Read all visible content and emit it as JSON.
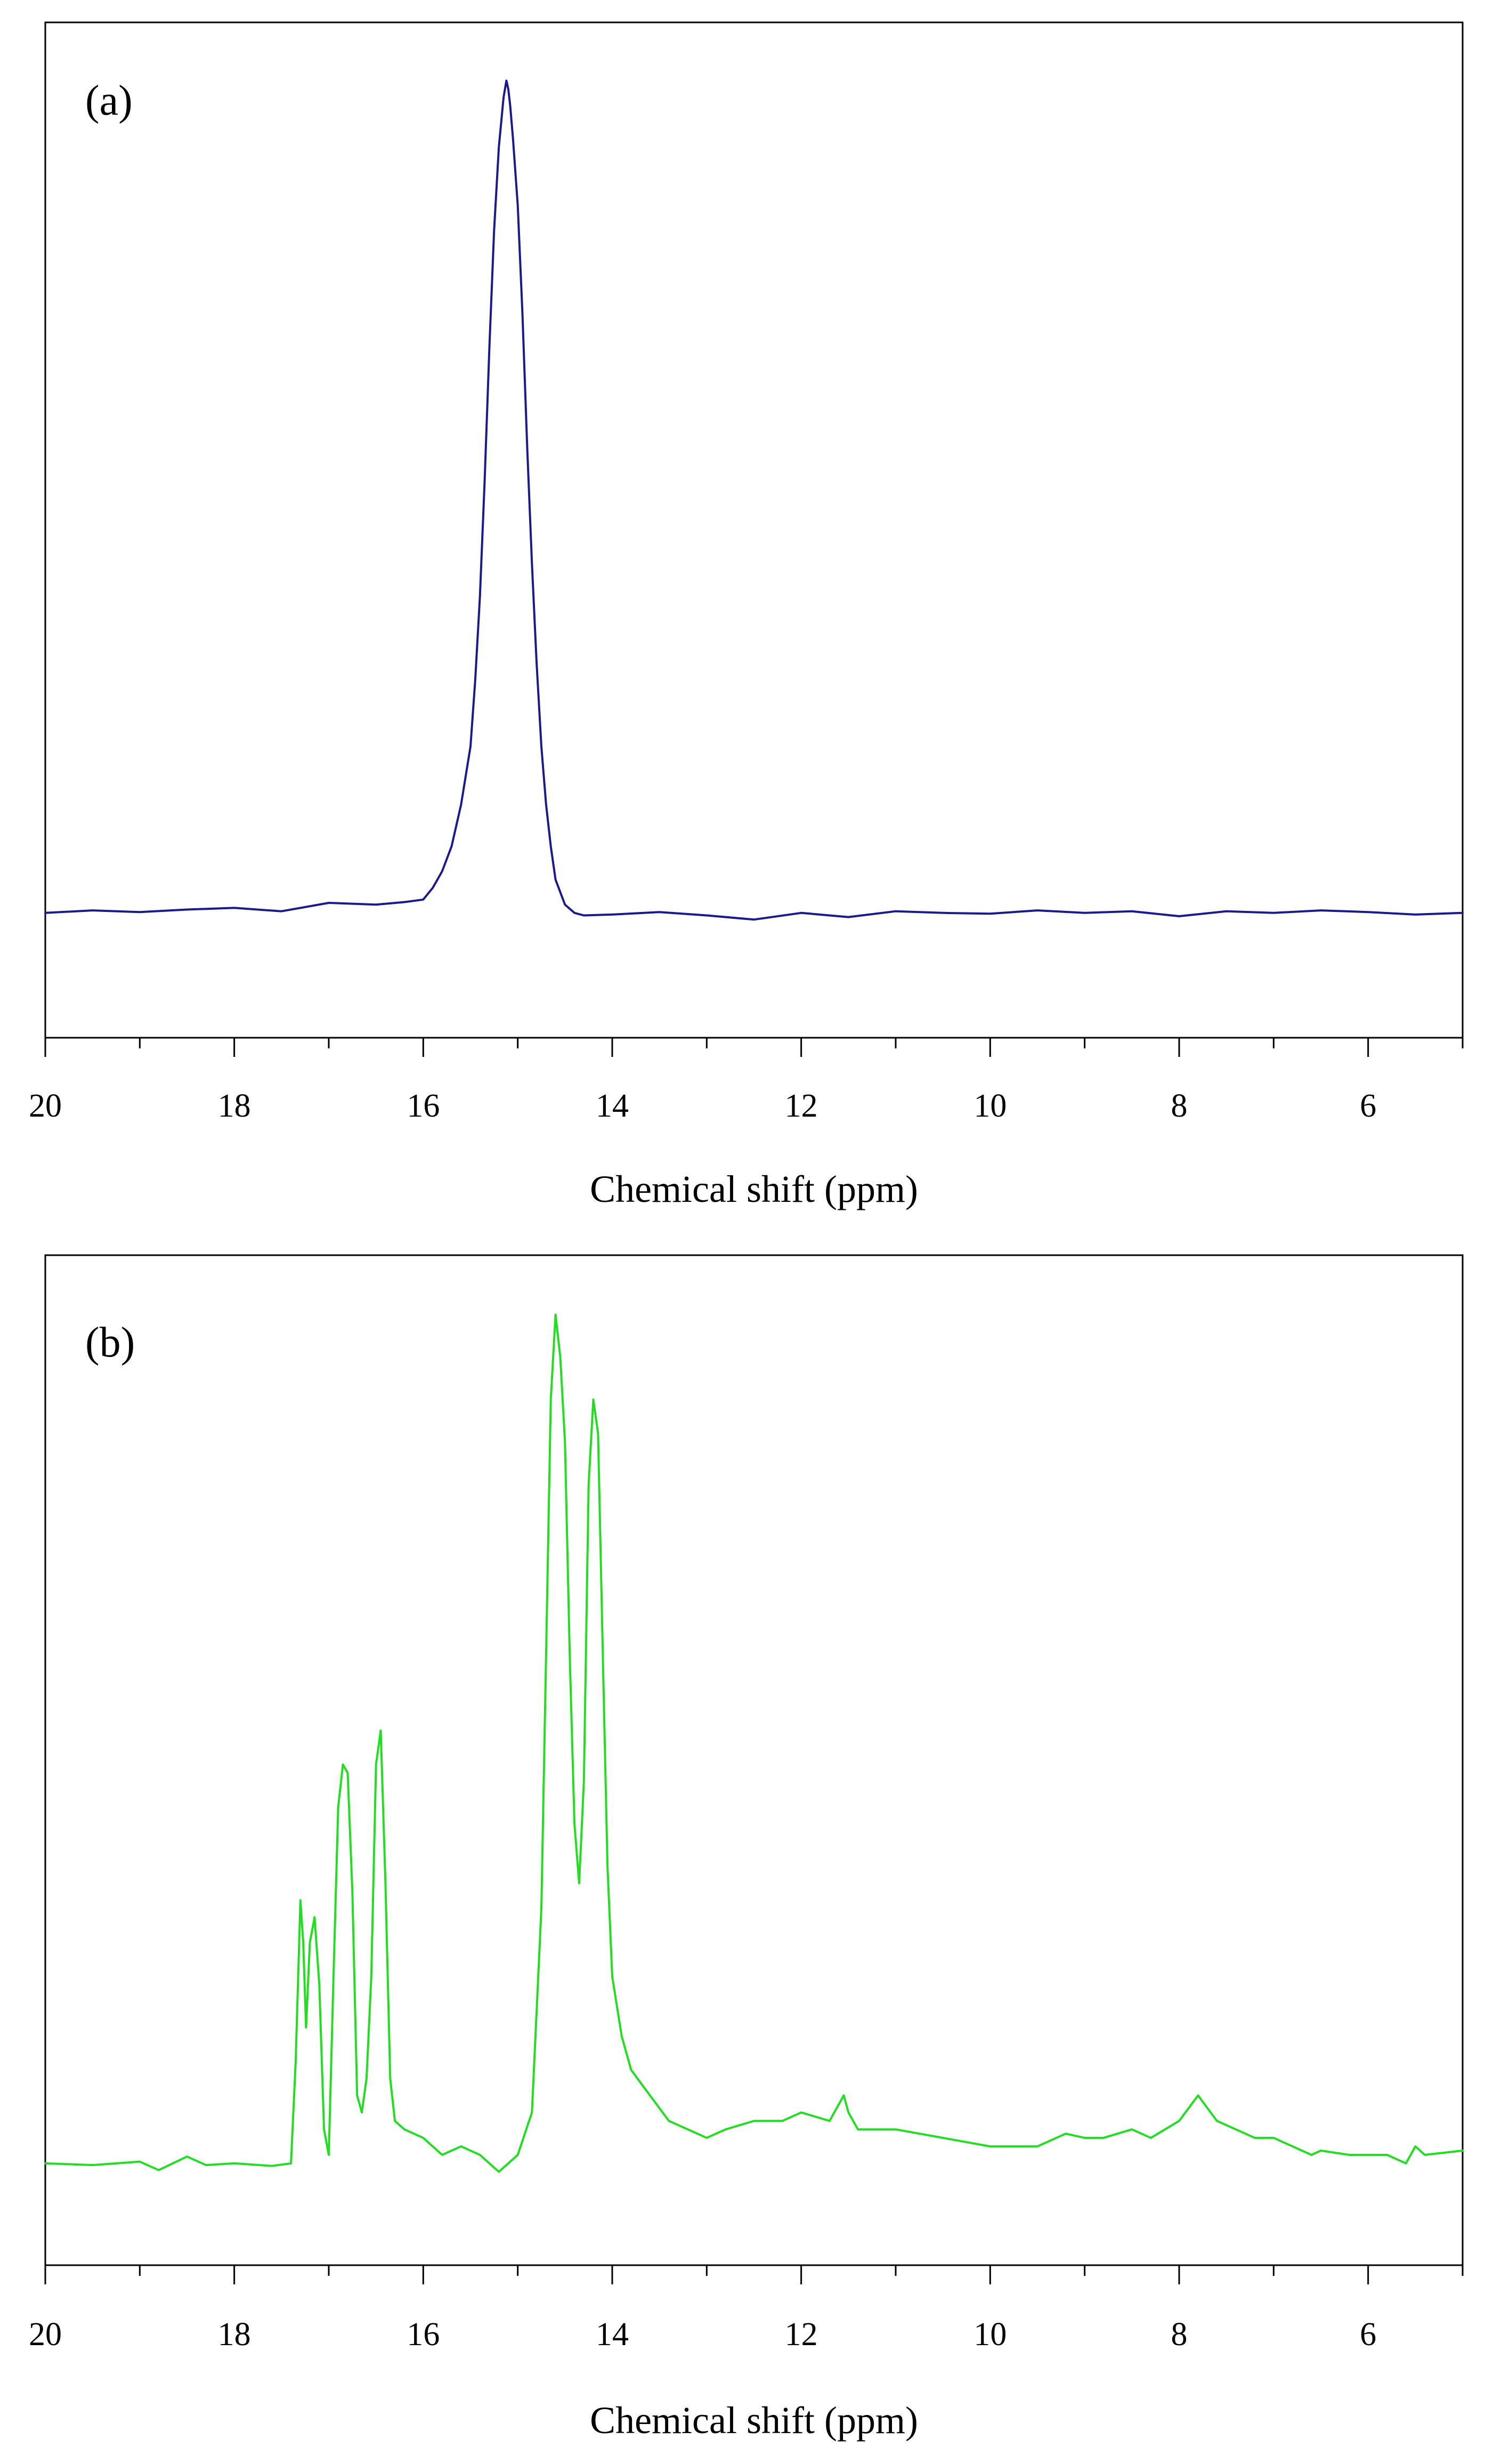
{
  "chart_data": [
    {
      "type": "line",
      "panel_label": "(a)",
      "xlabel": "Chemical shift (ppm)",
      "xlim": [
        20,
        5
      ],
      "xticks": [
        20,
        18,
        16,
        14,
        12,
        10,
        8,
        6
      ],
      "ylim": [
        -0.15,
        1.07
      ],
      "y_ticks_shown": false,
      "color": "#1a1a8c",
      "series": [
        {
          "x": [
            20,
            19.5,
            19,
            18.5,
            18,
            17.5,
            17,
            16.5,
            16.2,
            16.0,
            15.9,
            15.8,
            15.7,
            15.6,
            15.5,
            15.45,
            15.4,
            15.35,
            15.3,
            15.25,
            15.2,
            15.15,
            15.12,
            15.1,
            15.08,
            15.05,
            15.0,
            14.95,
            14.9,
            14.85,
            14.8,
            14.75,
            14.7,
            14.65,
            14.6,
            14.5,
            14.4,
            14.3,
            14.0,
            13.5,
            13.0,
            12.5,
            12.0,
            11.5,
            11.0,
            10.5,
            10.0,
            9.5,
            9.0,
            8.5,
            8.0,
            7.5,
            7.0,
            6.5,
            6.0,
            5.5,
            5.0
          ],
          "values": [
            0.0,
            0.003,
            0.001,
            0.004,
            0.006,
            0.002,
            0.012,
            0.01,
            0.013,
            0.016,
            0.03,
            0.05,
            0.08,
            0.13,
            0.2,
            0.28,
            0.38,
            0.52,
            0.68,
            0.82,
            0.92,
            0.98,
            1.0,
            0.99,
            0.97,
            0.93,
            0.85,
            0.72,
            0.56,
            0.42,
            0.3,
            0.2,
            0.13,
            0.08,
            0.04,
            0.01,
            0.0,
            -0.003,
            -0.002,
            0.001,
            -0.003,
            -0.008,
            0.0,
            -0.005,
            0.002,
            0.0,
            -0.001,
            0.003,
            0.0,
            0.002,
            -0.004,
            0.002,
            0.0,
            0.003,
            0.001,
            -0.002,
            0.0
          ]
        }
      ]
    },
    {
      "type": "line",
      "panel_label": "(b)",
      "xlabel": "Chemical shift (ppm)",
      "xlim": [
        20,
        5
      ],
      "xticks": [
        20,
        18,
        16,
        14,
        12,
        10,
        8,
        6
      ],
      "ylim": [
        -0.12,
        1.07
      ],
      "y_ticks_shown": false,
      "color": "#22dd22",
      "series": [
        {
          "x": [
            20,
            19.5,
            19.0,
            18.8,
            18.5,
            18.3,
            18.0,
            17.6,
            17.4,
            17.35,
            17.3,
            17.27,
            17.24,
            17.2,
            17.15,
            17.1,
            17.05,
            17.0,
            16.95,
            16.9,
            16.85,
            16.8,
            16.75,
            16.7,
            16.65,
            16.6,
            16.55,
            16.5,
            16.45,
            16.4,
            16.35,
            16.3,
            16.2,
            16.0,
            15.8,
            15.6,
            15.4,
            15.2,
            15.0,
            14.85,
            14.75,
            14.7,
            14.65,
            14.6,
            14.55,
            14.5,
            14.45,
            14.4,
            14.35,
            14.3,
            14.25,
            14.2,
            14.15,
            14.1,
            14.05,
            14.0,
            13.9,
            13.8,
            13.6,
            13.4,
            13.2,
            13.0,
            12.8,
            12.5,
            12.2,
            12.0,
            11.7,
            11.55,
            11.5,
            11.4,
            11.0,
            10.5,
            10.0,
            9.5,
            9.2,
            9.0,
            8.8,
            8.5,
            8.3,
            8.0,
            7.8,
            7.6,
            7.4,
            7.2,
            7.0,
            6.8,
            6.6,
            6.5,
            6.2,
            6.0,
            5.8,
            5.6,
            5.5,
            5.4,
            5.0
          ],
          "values": [
            0.0,
            -0.002,
            0.002,
            -0.008,
            0.008,
            -0.002,
            0.0,
            -0.003,
            0.0,
            0.12,
            0.31,
            0.26,
            0.16,
            0.26,
            0.29,
            0.21,
            0.04,
            0.01,
            0.22,
            0.42,
            0.47,
            0.46,
            0.32,
            0.08,
            0.06,
            0.1,
            0.22,
            0.47,
            0.51,
            0.33,
            0.1,
            0.05,
            0.04,
            0.03,
            0.01,
            0.02,
            0.01,
            -0.01,
            0.01,
            0.06,
            0.3,
            0.6,
            0.9,
            1.0,
            0.95,
            0.85,
            0.6,
            0.4,
            0.33,
            0.45,
            0.8,
            0.9,
            0.86,
            0.6,
            0.35,
            0.22,
            0.15,
            0.11,
            0.08,
            0.05,
            0.04,
            0.03,
            0.04,
            0.05,
            0.05,
            0.06,
            0.05,
            0.08,
            0.06,
            0.04,
            0.04,
            0.03,
            0.02,
            0.02,
            0.035,
            0.03,
            0.03,
            0.04,
            0.03,
            0.05,
            0.08,
            0.05,
            0.04,
            0.03,
            0.03,
            0.02,
            0.01,
            0.015,
            0.01,
            0.01,
            0.01,
            0.0,
            0.02,
            0.01,
            0.015
          ]
        }
      ]
    }
  ]
}
